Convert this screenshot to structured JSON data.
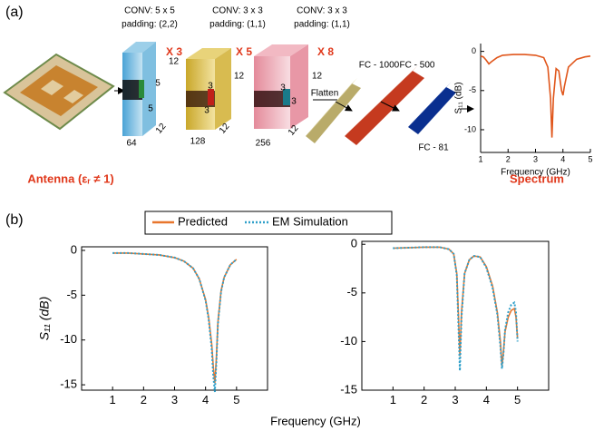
{
  "panel_a": {
    "label": "(a)",
    "layers": [
      {
        "conv": "CONV: 5 x 5",
        "padding": "padding: (2,2)",
        "repeat": "X 3",
        "kernel": [
          "5",
          "5"
        ],
        "height": "12",
        "channels": "64",
        "depth": "12"
      },
      {
        "conv": "CONV: 3 x 3",
        "padding": "padding: (1,1)",
        "repeat": "X 5",
        "kernel": [
          "3",
          "3"
        ],
        "height": "12",
        "channels": "128",
        "depth": "12"
      },
      {
        "conv": "CONV: 3 x 3",
        "padding": "padding: (1,1)",
        "repeat": "X 8",
        "kernel": [
          "3",
          "3"
        ],
        "height": "12",
        "channels": "256",
        "depth": "12"
      }
    ],
    "flatten": "Flatten",
    "fc": [
      "FC - 1000",
      "FC - 500",
      "FC - 81"
    ],
    "antenna_label": "Antenna (εᵣ ≠ 1)",
    "spectrum_label": "Spectrum"
  },
  "panel_b": {
    "label": "(b)"
  },
  "chart_data": [
    {
      "type": "line",
      "xlabel": "Frequency (GHz)",
      "ylabel": "S₁₁ (dB)",
      "xlim": [
        1,
        5
      ],
      "ylim": [
        -12.9,
        1
      ],
      "xticks": [
        1,
        2,
        3,
        4,
        5
      ],
      "yticks": [
        0,
        -5,
        -10
      ],
      "x": [
        1,
        1.1,
        1.2,
        1.3,
        1.4,
        1.6,
        1.8,
        2.2,
        2.6,
        3.0,
        3.3,
        3.45,
        3.55,
        3.6,
        3.65,
        3.75,
        3.85,
        3.95,
        4.0,
        4.05,
        4.2,
        4.5,
        4.8,
        5.0
      ],
      "series": [
        {
          "name": "Spectrum",
          "color": "#e0561b",
          "values": [
            -0.6,
            -0.7,
            -1.1,
            -1.6,
            -1.3,
            -0.8,
            -0.5,
            -0.4,
            -0.4,
            -0.5,
            -0.8,
            -2,
            -6,
            -11,
            -6,
            -2.2,
            -2.5,
            -5,
            -5.6,
            -4.5,
            -2,
            -1,
            -0.7,
            -0.6
          ]
        }
      ]
    },
    {
      "type": "line",
      "xlabel": "Frequency (GHz)",
      "ylabel": "S₁₁ (dB)",
      "xlim": [
        0,
        6
      ],
      "ylim": [
        -15.6,
        0.4
      ],
      "xticks": [
        1,
        2,
        3,
        4,
        5
      ],
      "yticks": [
        0,
        -5,
        -10,
        -15
      ],
      "x": [
        1,
        1.5,
        2,
        2.5,
        3,
        3.3,
        3.6,
        3.8,
        4.0,
        4.1,
        4.2,
        4.25,
        4.3,
        4.35,
        4.4,
        4.5,
        4.6,
        4.8,
        5.0
      ],
      "series": [
        {
          "name": "Predicted",
          "color": "#e8762d",
          "dashed": false,
          "values": [
            -0.3,
            -0.3,
            -0.4,
            -0.5,
            -0.8,
            -1.2,
            -2,
            -3.2,
            -5.5,
            -7.5,
            -10.5,
            -13,
            -14.8,
            -12,
            -8,
            -4.5,
            -3,
            -1.6,
            -1
          ]
        },
        {
          "name": "EM Simulation",
          "color": "#2f9fc9",
          "dashed": true,
          "values": [
            -0.3,
            -0.3,
            -0.4,
            -0.5,
            -0.8,
            -1.2,
            -2,
            -3.2,
            -5.6,
            -7.7,
            -11,
            -14,
            -15.8,
            -12.5,
            -8.2,
            -4.6,
            -3,
            -1.6,
            -1
          ]
        }
      ]
    },
    {
      "type": "line",
      "xlim": [
        0,
        6
      ],
      "ylim": [
        -15,
        0.3
      ],
      "xticks": [
        1,
        2,
        3,
        4,
        5
      ],
      "yticks": [
        0,
        -5,
        -10,
        -15
      ],
      "x": [
        1,
        1.5,
        2,
        2.5,
        2.8,
        2.95,
        3.05,
        3.1,
        3.15,
        3.2,
        3.3,
        3.45,
        3.6,
        3.8,
        4.0,
        4.2,
        4.35,
        4.45,
        4.5,
        4.55,
        4.6,
        4.7,
        4.8,
        4.9,
        4.95,
        5.0
      ],
      "series": [
        {
          "color": "#e8762d",
          "dashed": false,
          "values": [
            -0.4,
            -0.35,
            -0.3,
            -0.3,
            -0.5,
            -1,
            -3,
            -7,
            -11.5,
            -7,
            -3,
            -1.6,
            -1.2,
            -1.3,
            -2.3,
            -4.3,
            -7,
            -10,
            -12.5,
            -11,
            -9,
            -7.5,
            -6.8,
            -6.6,
            -7.5,
            -9.7
          ]
        },
        {
          "color": "#2f9fc9",
          "dashed": true,
          "values": [
            -0.4,
            -0.35,
            -0.3,
            -0.3,
            -0.5,
            -1,
            -3.2,
            -8,
            -13,
            -7.5,
            -3,
            -1.6,
            -1.2,
            -1.3,
            -2.4,
            -4.5,
            -7.2,
            -10.5,
            -12.8,
            -11.2,
            -8.8,
            -7,
            -6.2,
            -6,
            -7,
            -10
          ]
        }
      ]
    }
  ]
}
